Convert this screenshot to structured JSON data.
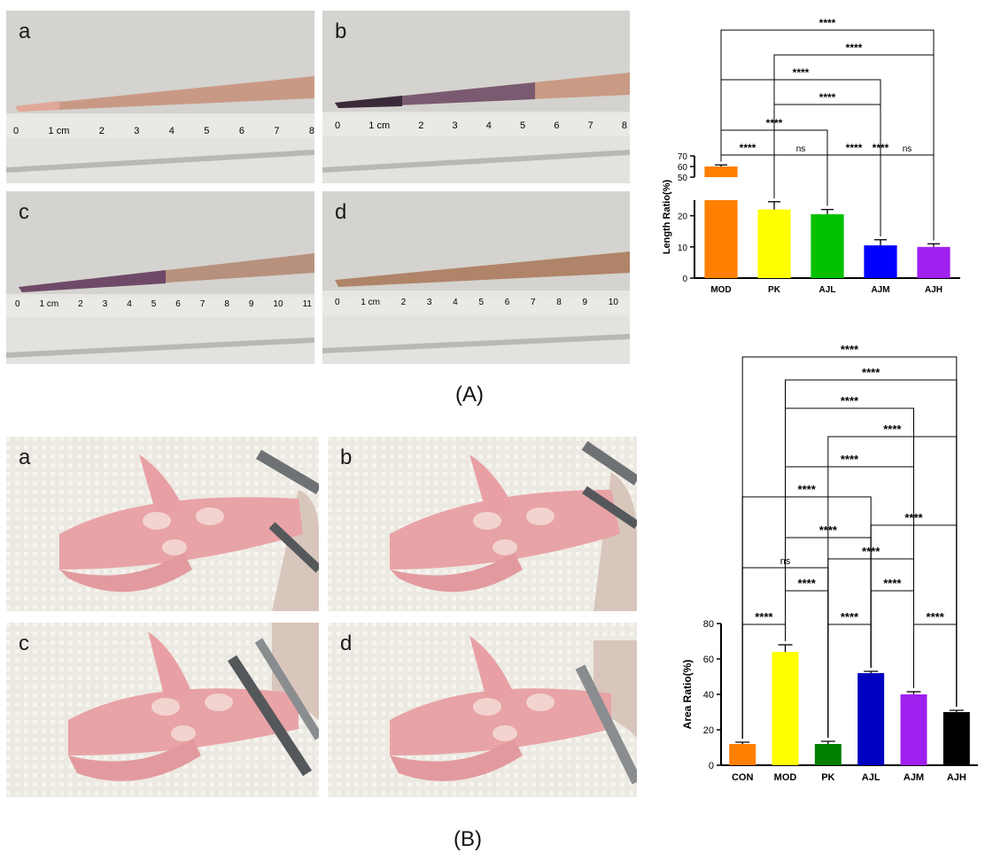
{
  "panels": {
    "A": {
      "caption": "(A)",
      "photo_labels": [
        "a",
        "b",
        "c",
        "d"
      ],
      "ruler_numbers": [
        [
          "0",
          "1 cm",
          "2",
          "3",
          "4",
          "5",
          "6",
          "7",
          "8"
        ],
        [
          "0",
          "1 cm",
          "2",
          "3",
          "4",
          "5",
          "6",
          "7",
          "8"
        ],
        [
          "0",
          "1 cm",
          "2",
          "3",
          "4",
          "5",
          "6",
          "7",
          "8",
          "9",
          "10",
          "11"
        ],
        [
          "0",
          "1 cm",
          "2",
          "3",
          "4",
          "5",
          "6",
          "7",
          "8",
          "9",
          "10"
        ]
      ]
    },
    "B": {
      "caption": "(B)",
      "photo_labels": [
        "a",
        "b",
        "c",
        "d"
      ]
    }
  },
  "colors": {
    "orange": "#ff7f00",
    "yellow": "#ffff00",
    "green": "#00c000",
    "dark_green": "#007f00",
    "blue": "#0000ff",
    "dark_blue": "#0000c0",
    "purple": "#a020f0",
    "black": "#000000"
  },
  "chart_data": [
    {
      "type": "bar",
      "ylabel": "Length Ratio(%)",
      "categories": [
        "MOD",
        "PK",
        "AJL",
        "AJM",
        "AJH"
      ],
      "values": [
        60,
        22,
        20.5,
        10.5,
        10
      ],
      "errors": [
        1.5,
        2.5,
        1.5,
        1.8,
        1.0
      ],
      "bar_colors": [
        "#ff7f00",
        "#ffff00",
        "#00c000",
        "#0000ff",
        "#a020f0"
      ],
      "axis_break": {
        "lower": [
          0,
          25
        ],
        "upper": [
          50,
          70
        ]
      },
      "yticks_lower": [
        0,
        10,
        20
      ],
      "yticks_upper": [
        50,
        60,
        70
      ],
      "comparisons": [
        {
          "from": "MOD",
          "to": "AJH",
          "label": "****"
        },
        {
          "from": "PK",
          "to": "AJH",
          "label": "****"
        },
        {
          "from": "MOD",
          "to": "AJM",
          "label": "****"
        },
        {
          "from": "PK",
          "to": "AJM",
          "label": "****"
        },
        {
          "from": "MOD",
          "to": "AJL",
          "label": "****"
        },
        {
          "from": "AJL",
          "to": "AJH",
          "label": "****"
        },
        {
          "from": "MOD",
          "to": "PK",
          "label": "****"
        },
        {
          "from": "PK",
          "to": "AJL",
          "label": "ns"
        },
        {
          "from": "AJL",
          "to": "AJM",
          "label": "****"
        },
        {
          "from": "AJM",
          "to": "AJH",
          "label": "ns"
        }
      ]
    },
    {
      "type": "bar",
      "ylabel": "Area Ratio(%)",
      "categories": [
        "CON",
        "MOD",
        "PK",
        "AJL",
        "AJM",
        "AJH"
      ],
      "values": [
        12,
        64,
        12,
        52,
        40,
        30
      ],
      "errors": [
        1.0,
        4.0,
        1.5,
        1.0,
        1.5,
        1.0
      ],
      "bar_colors": [
        "#ff7f00",
        "#ffff00",
        "#007f00",
        "#0000c0",
        "#a020f0",
        "#000000"
      ],
      "ylim": [
        0,
        80
      ],
      "yticks": [
        0,
        20,
        40,
        60,
        80
      ],
      "comparisons": [
        {
          "from": "CON",
          "to": "AJH",
          "label": "****"
        },
        {
          "from": "MOD",
          "to": "AJH",
          "label": "****"
        },
        {
          "from": "MOD",
          "to": "AJM",
          "label": "****"
        },
        {
          "from": "PK",
          "to": "AJH",
          "label": "****"
        },
        {
          "from": "MOD",
          "to": "AJM",
          "label": "****"
        },
        {
          "from": "CON",
          "to": "AJL",
          "label": "****"
        },
        {
          "from": "AJL",
          "to": "AJH",
          "label": "****"
        },
        {
          "from": "MOD",
          "to": "AJL",
          "label": "****"
        },
        {
          "from": "CON",
          "to": "PK",
          "label": "ns"
        },
        {
          "from": "PK",
          "to": "AJM",
          "label": "****"
        },
        {
          "from": "MOD",
          "to": "PK",
          "label": "****"
        },
        {
          "from": "AJL",
          "to": "AJM",
          "label": "****"
        },
        {
          "from": "CON",
          "to": "MOD",
          "label": "****"
        },
        {
          "from": "PK",
          "to": "AJL",
          "label": "****"
        },
        {
          "from": "AJM",
          "to": "AJH",
          "label": "****"
        }
      ]
    }
  ]
}
